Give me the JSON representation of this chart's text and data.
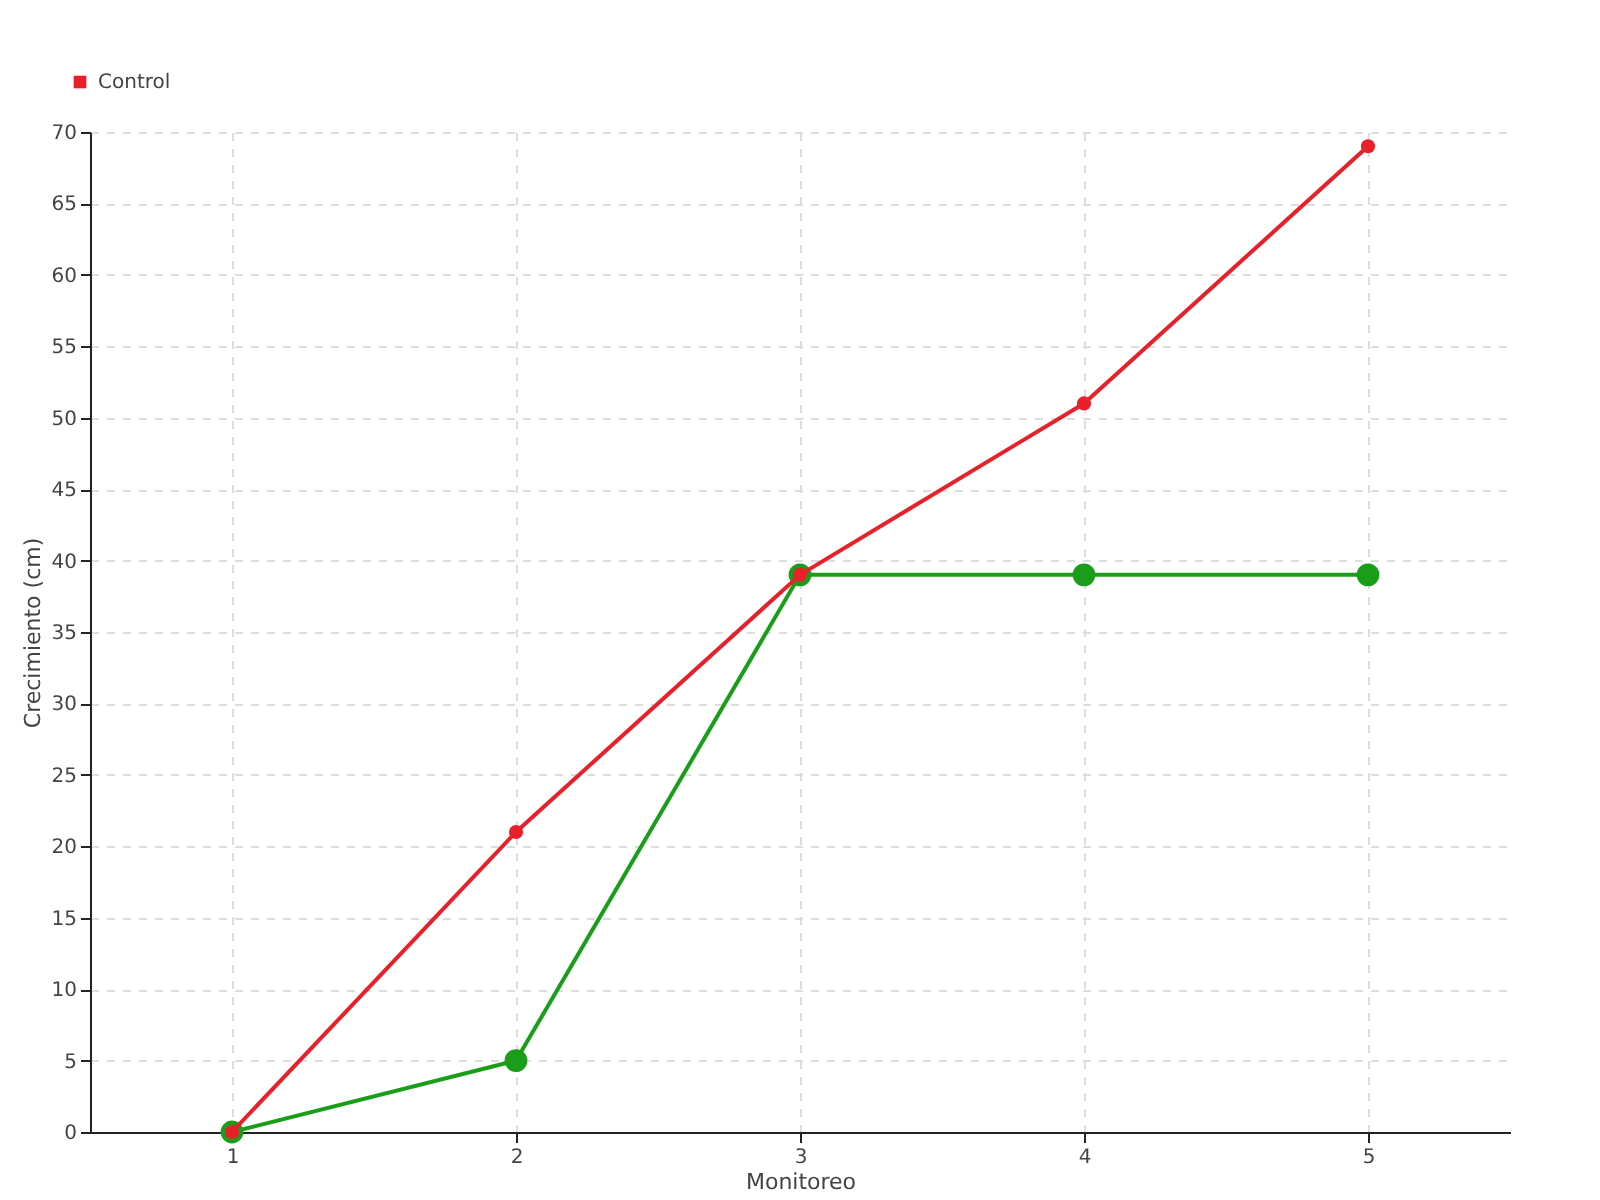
{
  "chart_data": {
    "type": "line",
    "xlabel": "Monitoreo",
    "ylabel": "Crecimiento (cm)",
    "x": [
      1,
      2,
      3,
      4,
      5
    ],
    "series": [
      {
        "color": "#1a9e1a",
        "values": [
          0,
          5,
          39,
          39,
          39
        ]
      },
      {
        "name": "Control",
        "color": "#e8202a",
        "values": [
          0,
          21,
          39,
          51,
          69
        ]
      }
    ],
    "xlim": [
      0.5,
      5.5
    ],
    "xticks": [
      1,
      2,
      3,
      4,
      5
    ],
    "ylim": [
      0,
      70
    ],
    "yticks": [
      0,
      5,
      10,
      15,
      20,
      25,
      30,
      35,
      40,
      45,
      50,
      55,
      60,
      65,
      70
    ],
    "grid": true,
    "legend": "top left",
    "marker": "circle",
    "line_style": "solid"
  }
}
